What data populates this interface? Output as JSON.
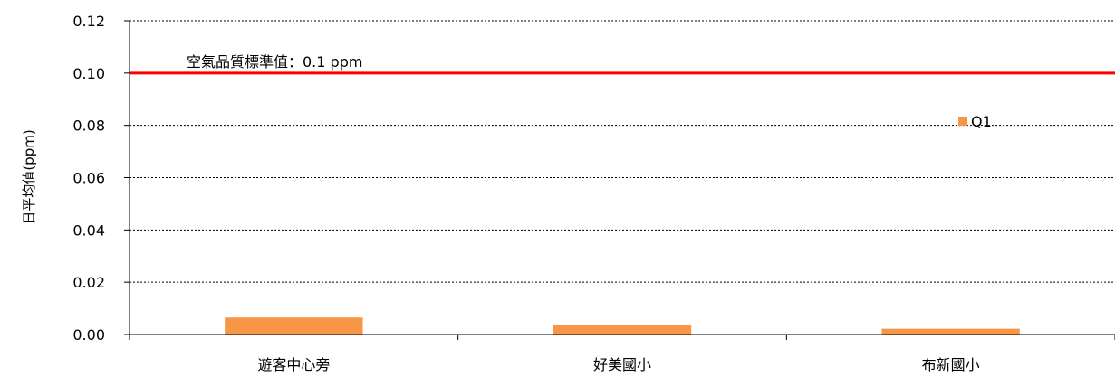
{
  "chart_data": {
    "type": "bar",
    "title": "",
    "xlabel": "",
    "ylabel": "日平均值(ppm)",
    "ylim": [
      0,
      0.12
    ],
    "yticks": [
      0.0,
      0.02,
      0.04,
      0.06,
      0.08,
      0.1,
      0.12
    ],
    "ytick_labels": [
      "0.00",
      "0.02",
      "0.04",
      "0.06",
      "0.08",
      "0.10",
      "0.12"
    ],
    "categories": [
      "遊客中心旁",
      "好美國小",
      "布新國小"
    ],
    "series": [
      {
        "name": "Q1",
        "values": [
          0.0065,
          0.0035,
          0.0022
        ],
        "color": "#F79646"
      }
    ],
    "reference_line": {
      "value": 0.1,
      "label": "空氣品質標準值：0.1 ppm",
      "color": "#FF0000"
    },
    "grid": true,
    "legend_position": "top-right"
  }
}
